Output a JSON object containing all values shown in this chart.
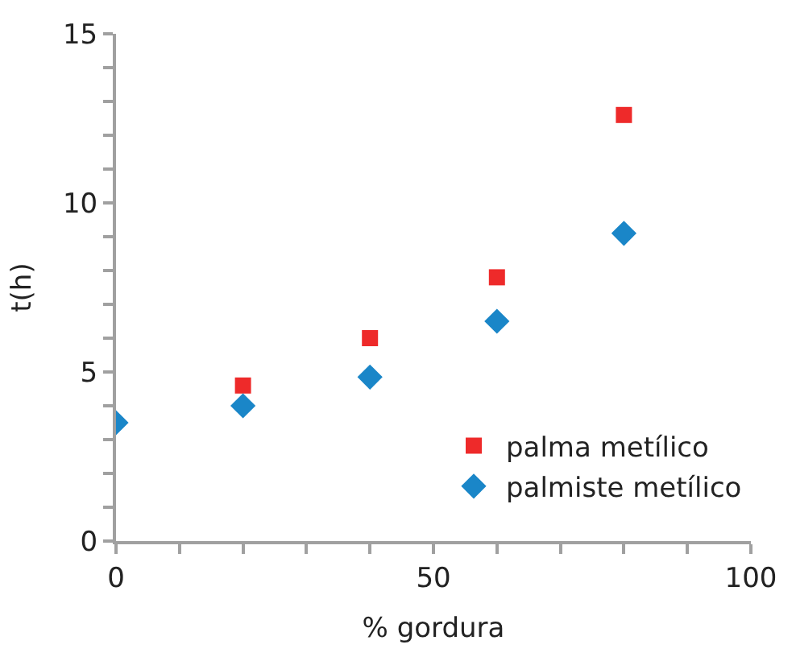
{
  "chart_data": {
    "type": "scatter",
    "xlabel": "% gordura",
    "ylabel": "t(h)",
    "xlim": [
      0,
      100
    ],
    "ylim": [
      0,
      15
    ],
    "xticks": [
      0,
      {
        "value": 10,
        "label": null
      },
      {
        "value": 20,
        "label": null
      },
      {
        "value": 30,
        "label": null
      },
      {
        "value": 40,
        "label": null
      },
      50,
      {
        "value": 60,
        "label": null
      },
      {
        "value": 70,
        "label": null
      },
      {
        "value": 80,
        "label": null
      },
      {
        "value": 90,
        "label": null
      },
      100
    ],
    "yticks": [
      0,
      {
        "value": 1,
        "label": null
      },
      {
        "value": 2,
        "label": null
      },
      {
        "value": 3,
        "label": null
      },
      {
        "value": 4,
        "label": null
      },
      5,
      {
        "value": 6,
        "label": null
      },
      {
        "value": 7,
        "label": null
      },
      {
        "value": 8,
        "label": null
      },
      {
        "value": 9,
        "label": null
      },
      10,
      {
        "value": 11,
        "label": null
      },
      {
        "value": 12,
        "label": null
      },
      {
        "value": 13,
        "label": null
      },
      {
        "value": 14,
        "label": null
      },
      15
    ],
    "legend": "bottom right",
    "series": [
      {
        "name": "palma metílico",
        "color": "#ee2a2a",
        "marker": "square",
        "x": [
          20,
          40,
          60,
          80
        ],
        "values": [
          4.6,
          6.0,
          7.8,
          12.6
        ]
      },
      {
        "name": "palmiste metílico",
        "color": "#1a86c8",
        "marker": "diamond",
        "x": [
          0,
          20,
          40,
          60,
          80
        ],
        "values": [
          3.5,
          4.0,
          4.85,
          6.5,
          9.1
        ]
      }
    ]
  }
}
